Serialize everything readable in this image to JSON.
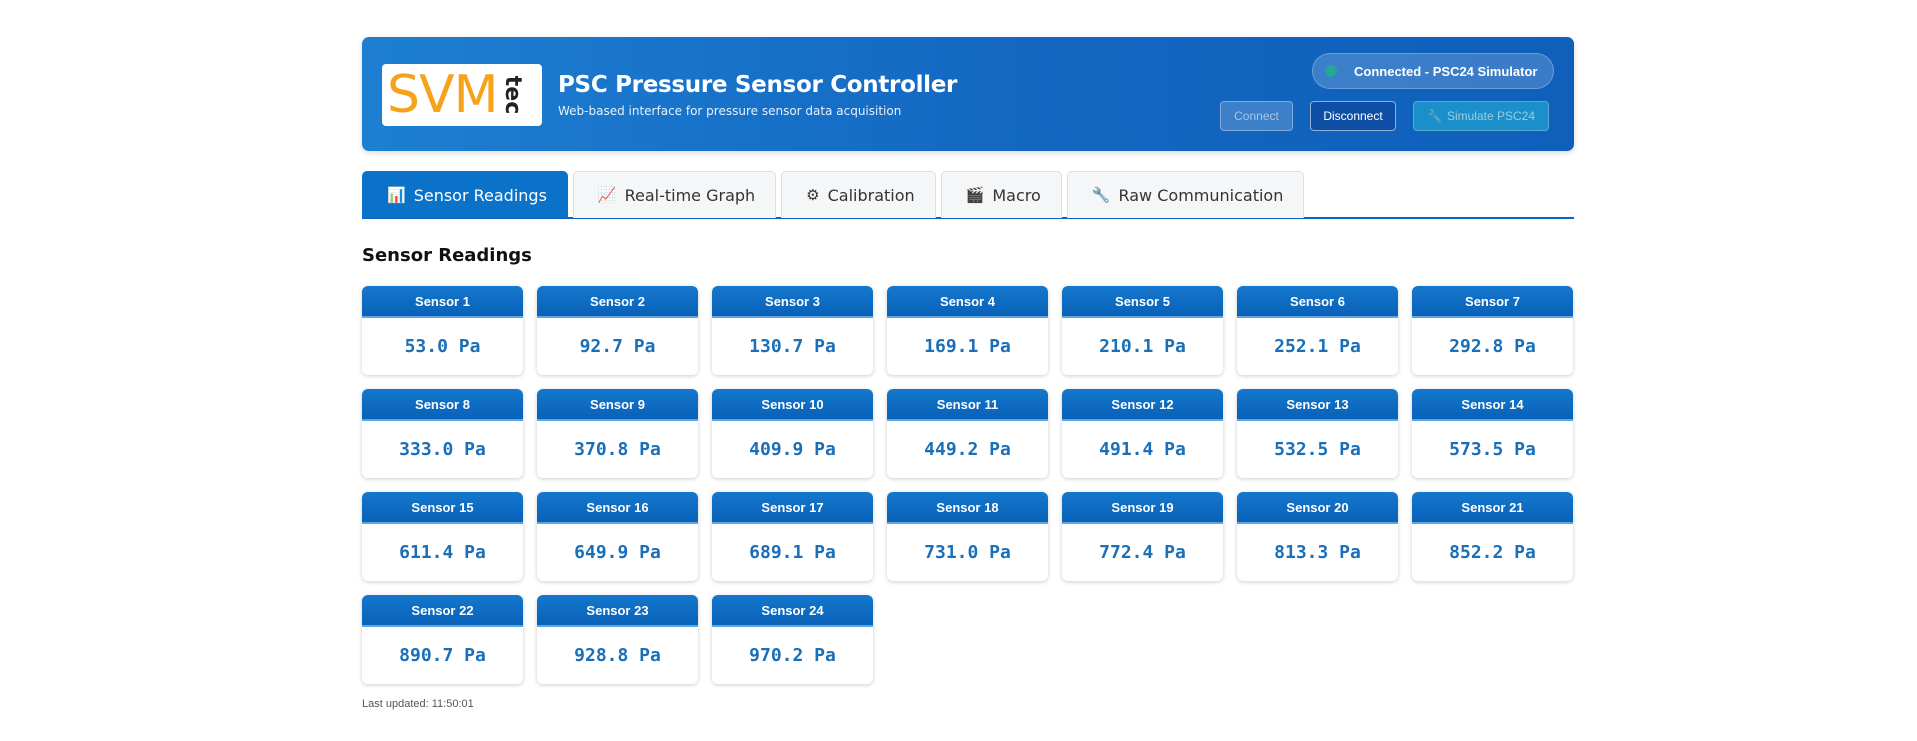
{
  "header": {
    "logo_main": "SVM",
    "logo_sub": "tec",
    "title": "PSC Pressure Sensor Controller",
    "subtitle": "Web-based interface for pressure sensor data acquisition",
    "status": "Connected - PSC24 Simulator",
    "status_color": "#26a69a",
    "buttons": {
      "connect": "Connect",
      "disconnect": "Disconnect",
      "simulate": "Simulate PSC24",
      "simulate_icon": "wrench-icon"
    }
  },
  "tabs": [
    {
      "label": "Sensor Readings",
      "icon": "📊",
      "active": true
    },
    {
      "label": "Real-time Graph",
      "icon": "📈",
      "active": false
    },
    {
      "label": "Calibration",
      "icon": "⚙",
      "active": false
    },
    {
      "label": "Macro",
      "icon": "🎬",
      "active": false
    },
    {
      "label": "Raw Communication",
      "icon": "🔧",
      "active": false
    }
  ],
  "section_title": "Sensor Readings",
  "sensors": [
    {
      "name": "Sensor 1",
      "value": "53.0 Pa"
    },
    {
      "name": "Sensor 2",
      "value": "92.7 Pa"
    },
    {
      "name": "Sensor 3",
      "value": "130.7 Pa"
    },
    {
      "name": "Sensor 4",
      "value": "169.1 Pa"
    },
    {
      "name": "Sensor 5",
      "value": "210.1 Pa"
    },
    {
      "name": "Sensor 6",
      "value": "252.1 Pa"
    },
    {
      "name": "Sensor 7",
      "value": "292.8 Pa"
    },
    {
      "name": "Sensor 8",
      "value": "333.0 Pa"
    },
    {
      "name": "Sensor 9",
      "value": "370.8 Pa"
    },
    {
      "name": "Sensor 10",
      "value": "409.9 Pa"
    },
    {
      "name": "Sensor 11",
      "value": "449.2 Pa"
    },
    {
      "name": "Sensor 12",
      "value": "491.4 Pa"
    },
    {
      "name": "Sensor 13",
      "value": "532.5 Pa"
    },
    {
      "name": "Sensor 14",
      "value": "573.5 Pa"
    },
    {
      "name": "Sensor 15",
      "value": "611.4 Pa"
    },
    {
      "name": "Sensor 16",
      "value": "649.9 Pa"
    },
    {
      "name": "Sensor 17",
      "value": "689.1 Pa"
    },
    {
      "name": "Sensor 18",
      "value": "731.0 Pa"
    },
    {
      "name": "Sensor 19",
      "value": "772.4 Pa"
    },
    {
      "name": "Sensor 20",
      "value": "813.3 Pa"
    },
    {
      "name": "Sensor 21",
      "value": "852.2 Pa"
    },
    {
      "name": "Sensor 22",
      "value": "890.7 Pa"
    },
    {
      "name": "Sensor 23",
      "value": "928.8 Pa"
    },
    {
      "name": "Sensor 24",
      "value": "970.2 Pa"
    }
  ],
  "last_updated": "Last updated: 11:50:01"
}
